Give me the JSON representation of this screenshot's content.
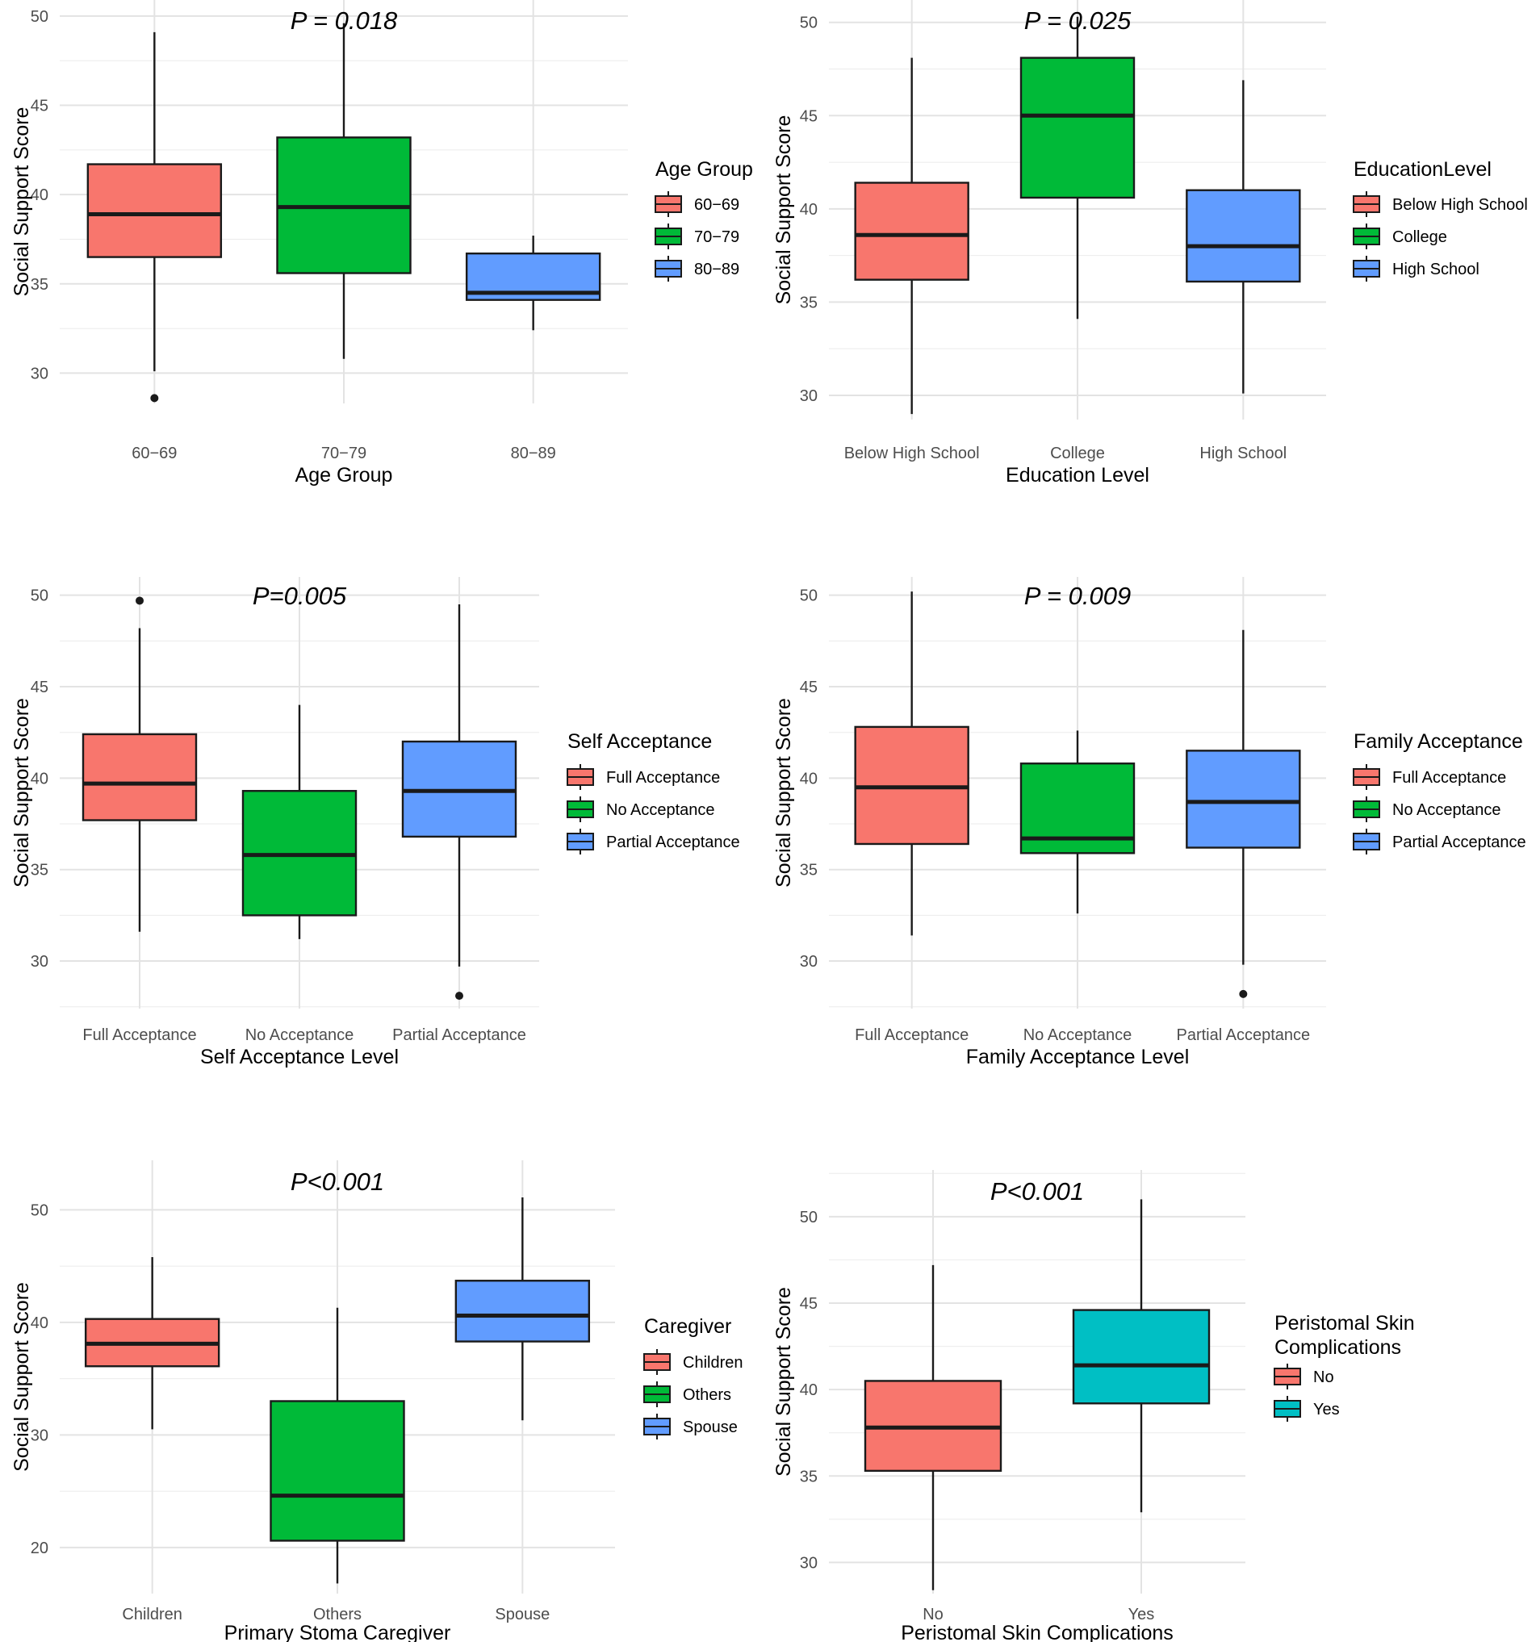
{
  "chart_data": [
    {
      "type": "boxplot",
      "title": "P = 0.018",
      "xlabel": "Age Group",
      "ylabel": "Social Support Score",
      "ylim": [
        28.3,
        50.9
      ],
      "yticks": [
        30,
        35,
        40,
        45,
        50
      ],
      "categories": [
        "60−69",
        "70−79",
        "80−89"
      ],
      "fills": [
        "#F8766D",
        "#00BA38",
        "#619CFF"
      ],
      "boxes": [
        {
          "min": 30.1,
          "q1": 36.5,
          "median": 38.9,
          "q3": 41.7,
          "max": 49.1,
          "outliers": [
            28.6
          ]
        },
        {
          "min": 30.8,
          "q1": 35.6,
          "median": 39.3,
          "q3": 43.2,
          "max": 49.6,
          "outliers": []
        },
        {
          "min": 32.4,
          "q1": 34.1,
          "median": 34.5,
          "q3": 36.7,
          "max": 37.7,
          "outliers": []
        }
      ],
      "legend": {
        "title": "Age Group",
        "entries": [
          "60−69",
          "70−79",
          "80−89"
        ]
      }
    },
    {
      "type": "boxplot",
      "title": "P = 0.025",
      "xlabel": "Education Level",
      "ylabel": "Social Support Score",
      "ylim": [
        28.7,
        51.2
      ],
      "yticks": [
        30,
        35,
        40,
        45,
        50
      ],
      "categories": [
        "Below High School",
        "College",
        "High School"
      ],
      "fills": [
        "#F8766D",
        "#00BA38",
        "#619CFF"
      ],
      "boxes": [
        {
          "min": 29.0,
          "q1": 36.2,
          "median": 38.6,
          "q3": 41.4,
          "max": 48.1,
          "outliers": []
        },
        {
          "min": 34.1,
          "q1": 40.6,
          "median": 45.0,
          "q3": 48.1,
          "max": 50.3,
          "outliers": []
        },
        {
          "min": 30.1,
          "q1": 36.1,
          "median": 38.0,
          "q3": 41.0,
          "max": 46.9,
          "outliers": []
        }
      ],
      "legend": {
        "title": "EducationLevel",
        "entries": [
          "Below High School",
          "College",
          "High School"
        ]
      }
    },
    {
      "type": "boxplot",
      "title": "P=0.005",
      "xlabel": "Self Acceptance Level",
      "ylabel": "Social Support Score",
      "ylim": [
        27.4,
        51.0
      ],
      "yticks": [
        30,
        35,
        40,
        45,
        50
      ],
      "categories": [
        "Full Acceptance",
        "No Acceptance",
        "Partial Acceptance"
      ],
      "fills": [
        "#F8766D",
        "#00BA38",
        "#619CFF"
      ],
      "boxes": [
        {
          "min": 31.6,
          "q1": 37.7,
          "median": 39.7,
          "q3": 42.4,
          "max": 48.2,
          "outliers": [
            49.7
          ]
        },
        {
          "min": 31.2,
          "q1": 32.5,
          "median": 35.8,
          "q3": 39.3,
          "max": 44.0,
          "outliers": []
        },
        {
          "min": 29.7,
          "q1": 36.8,
          "median": 39.3,
          "q3": 42.0,
          "max": 49.5,
          "outliers": [
            28.1
          ]
        }
      ],
      "legend": {
        "title": "Self Acceptance",
        "entries": [
          "Full Acceptance",
          "No Acceptance",
          "Partial Acceptance"
        ]
      }
    },
    {
      "type": "boxplot",
      "title": "P = 0.009",
      "xlabel": "Family Acceptance Level",
      "ylabel": "Social Support Score",
      "ylim": [
        27.4,
        51.0
      ],
      "yticks": [
        30,
        35,
        40,
        45,
        50
      ],
      "categories": [
        "Full Acceptance",
        "No Acceptance",
        "Partial Acceptance"
      ],
      "fills": [
        "#F8766D",
        "#00BA38",
        "#619CFF"
      ],
      "boxes": [
        {
          "min": 31.4,
          "q1": 36.4,
          "median": 39.5,
          "q3": 42.8,
          "max": 50.2,
          "outliers": []
        },
        {
          "min": 32.6,
          "q1": 35.9,
          "median": 36.7,
          "q3": 40.8,
          "max": 42.6,
          "outliers": []
        },
        {
          "min": 29.8,
          "q1": 36.2,
          "median": 38.7,
          "q3": 41.5,
          "max": 48.1,
          "outliers": [
            28.2
          ]
        }
      ],
      "legend": {
        "title": "Family Acceptance",
        "entries": [
          "Full Acceptance",
          "No Acceptance",
          "Partial Acceptance"
        ]
      }
    },
    {
      "type": "boxplot",
      "title": "P<0.001",
      "xlabel": "Primary Stoma Caregiver",
      "ylabel": "Social Support Score",
      "ylim": [
        15.9,
        54.4
      ],
      "yticks": [
        20,
        30,
        40,
        50
      ],
      "categories": [
        "Children",
        "Others",
        "Spouse"
      ],
      "fills": [
        "#F8766D",
        "#00BA38",
        "#619CFF"
      ],
      "boxes": [
        {
          "min": 30.5,
          "q1": 36.1,
          "median": 38.1,
          "q3": 40.3,
          "max": 45.8,
          "outliers": []
        },
        {
          "min": 16.8,
          "q1": 20.6,
          "median": 24.6,
          "q3": 33.0,
          "max": 41.3,
          "outliers": []
        },
        {
          "min": 31.3,
          "q1": 38.3,
          "median": 40.6,
          "q3": 43.7,
          "max": 51.1,
          "outliers": []
        }
      ],
      "legend": {
        "title": "Caregiver",
        "entries": [
          "Children",
          "Others",
          "Spouse"
        ]
      }
    },
    {
      "type": "boxplot",
      "title": "P<0.001",
      "xlabel": "Peristomal Skin Complications",
      "ylabel": "Social Support Score",
      "ylim": [
        28.2,
        52.7
      ],
      "yticks": [
        30,
        35,
        40,
        45,
        50
      ],
      "categories": [
        "No",
        "Yes"
      ],
      "fills": [
        "#F8766D",
        "#00BFC4"
      ],
      "boxes": [
        {
          "min": 28.4,
          "q1": 35.3,
          "median": 37.8,
          "q3": 40.5,
          "max": 47.2,
          "outliers": []
        },
        {
          "min": 32.9,
          "q1": 39.2,
          "median": 41.4,
          "q3": 44.6,
          "max": 51.0,
          "outliers": []
        }
      ],
      "legend": {
        "title": [
          "Peristomal Skin",
          "Complications"
        ],
        "entries": [
          "No",
          "Yes"
        ]
      }
    }
  ]
}
